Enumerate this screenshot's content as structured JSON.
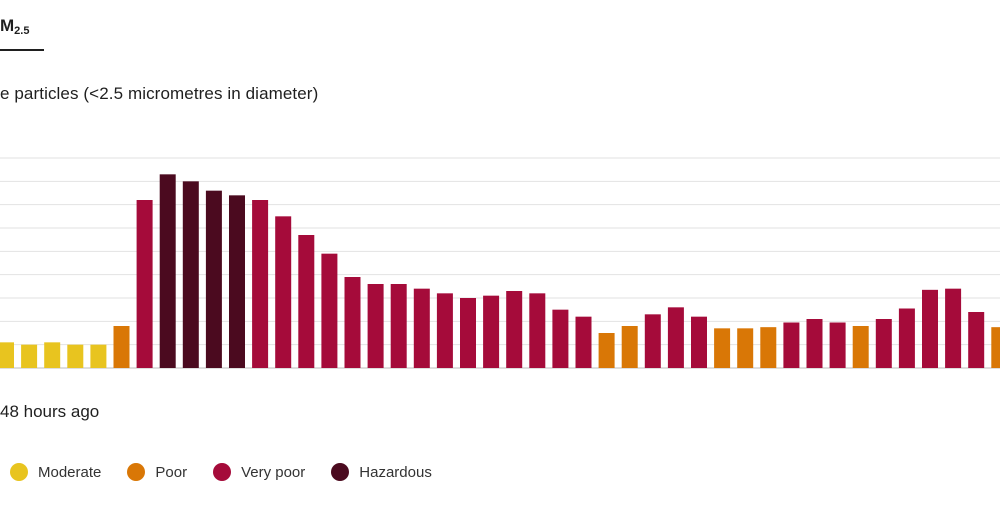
{
  "tab": {
    "label": "M",
    "sub": "2.5"
  },
  "subtitle": "e particles (<2.5 micrometres in diameter)",
  "chart_data": {
    "type": "bar",
    "xlabel": "48 hours ago",
    "ylabel": "",
    "ylim": [
      0,
      9
    ],
    "grid": true,
    "values": [
      1.1,
      1.0,
      1.1,
      1.0,
      1.0,
      1.8,
      7.2,
      8.3,
      8.0,
      7.6,
      7.4,
      7.2,
      6.5,
      5.7,
      4.9,
      3.9,
      3.6,
      3.6,
      3.4,
      3.2,
      3.0,
      3.1,
      3.3,
      3.2,
      2.5,
      2.2,
      1.5,
      1.8,
      2.3,
      2.6,
      2.2,
      1.7,
      1.7,
      1.75,
      1.95,
      2.1,
      1.95,
      1.8,
      2.1,
      2.55,
      3.35,
      3.4,
      2.4,
      1.75
    ],
    "categories": [
      "Moderate",
      "Moderate",
      "Moderate",
      "Moderate",
      "Moderate",
      "Poor",
      "Very poor",
      "Hazardous",
      "Hazardous",
      "Hazardous",
      "Hazardous",
      "Very poor",
      "Very poor",
      "Very poor",
      "Very poor",
      "Very poor",
      "Very poor",
      "Very poor",
      "Very poor",
      "Very poor",
      "Very poor",
      "Very poor",
      "Very poor",
      "Very poor",
      "Very poor",
      "Very poor",
      "Poor",
      "Poor",
      "Very poor",
      "Very poor",
      "Very poor",
      "Poor",
      "Poor",
      "Poor",
      "Very poor",
      "Very poor",
      "Very poor",
      "Poor",
      "Very poor",
      "Very poor",
      "Very poor",
      "Very poor",
      "Very poor",
      "Poor"
    ],
    "colors": {
      "Moderate": "#e8c41f",
      "Poor": "#d97706",
      "Very poor": "#a50b3a",
      "Hazardous": "#4b0a1f"
    },
    "legend": {
      "placement": "bottom-left",
      "items": [
        {
          "label": "Moderate",
          "color": "#e8c41f"
        },
        {
          "label": "Poor",
          "color": "#d97706"
        },
        {
          "label": "Very poor",
          "color": "#a50b3a"
        },
        {
          "label": "Hazardous",
          "color": "#4b0a1f"
        }
      ]
    }
  }
}
